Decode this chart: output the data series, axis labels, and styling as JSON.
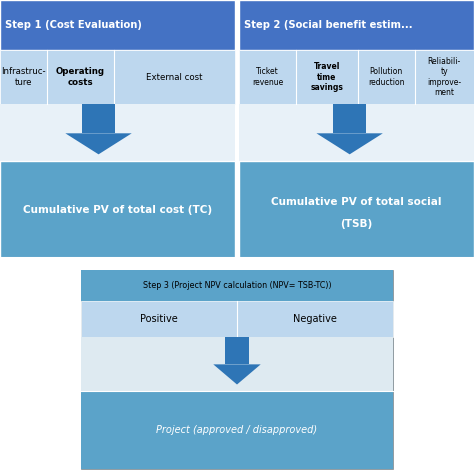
{
  "fig_width": 4.74,
  "fig_height": 4.74,
  "dpi": 100,
  "bg_color": "#ffffff",
  "step1_header": "Step 1 (Cost Evaluation)",
  "step2_header": "Step 2 (Social benefit estim...",
  "step1_cols": [
    "Infrastruc-\nture",
    "Operating\ncosts",
    "External cost"
  ],
  "step2_cols": [
    "Ticket\nrevenue",
    "Travel\ntime\nsavings",
    "Pollution\nreduction",
    "Reliabili-\nty\nimprove-\nment"
  ],
  "step1_result": "Cumulative PV of total cost (TC)",
  "step2_result_line1": "Cumulative PV of total social",
  "step2_result_line2": "(TSB)",
  "step3_header": "Step 3 (Project NPV calculation (NPV= TSB-TC))",
  "step3_pos": "Positive",
  "step3_neg": "Negative",
  "step3_result": "Project (approved / disapproved)",
  "col_header_bg": "#4472C4",
  "col_header_text": "#ffffff",
  "col_row_bg": "#BDD7EE",
  "col_row_bg2": "#DEEAF1",
  "arrow_mid_bg": "#ffffff",
  "result_bg": "#5BA3C9",
  "step3_outer_bg": "#5BA3C9",
  "step3_header_bg": "#5BA3C9",
  "step3_pos_neg_bg": "#BDD7EE",
  "step3_arrow_bg": "#DEEAF1",
  "step3_result_bg": "#5BA3C9",
  "arrow_color": "#2E75B6",
  "border_color": "#1F3864",
  "divider_white": "#ffffff"
}
